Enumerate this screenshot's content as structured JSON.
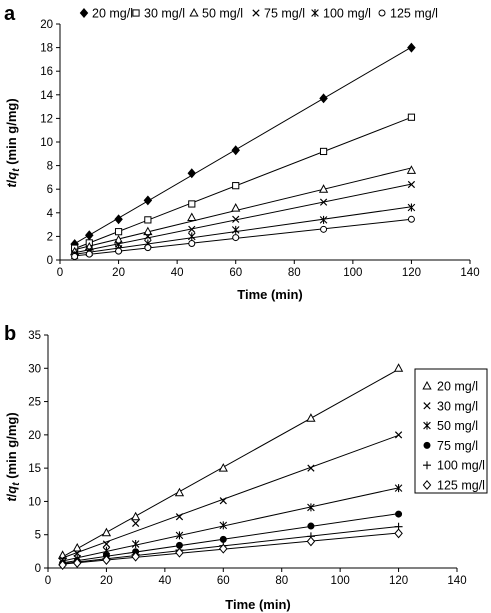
{
  "chart_data": [
    {
      "type": "scatter",
      "panel_label": "a",
      "title": "",
      "xlabel": "Time (min)",
      "ylabel_parts": [
        "t",
        "/",
        "q",
        "t",
        " (min g/mg)"
      ],
      "xlim": [
        0,
        140
      ],
      "ylim": [
        0,
        20
      ],
      "xticks": [
        "0",
        "20",
        "40",
        "60",
        "80",
        "100",
        "120",
        "140"
      ],
      "yticks": [
        "0",
        "2",
        "4",
        "6",
        "8",
        "10",
        "12",
        "14",
        "16",
        "18",
        "20"
      ],
      "grid": false,
      "legend_position": "top",
      "fit_lines": true,
      "x": [
        5,
        10,
        20,
        30,
        45,
        60,
        90,
        120
      ],
      "series": [
        {
          "name": "20 mg/l",
          "marker": "diamond-filled",
          "values": [
            1.35,
            2.1,
            3.45,
            5.05,
            7.35,
            9.3,
            13.7,
            18.0
          ]
        },
        {
          "name": "30 mg/l",
          "marker": "square-open",
          "values": [
            1.0,
            1.45,
            2.4,
            3.4,
            4.75,
            6.3,
            9.2,
            12.1
          ]
        },
        {
          "name": "50 mg/l",
          "marker": "triangle-open",
          "values": [
            0.7,
            1.1,
            1.7,
            2.4,
            3.6,
            4.4,
            6.0,
            7.6
          ]
        },
        {
          "name": "75 mg/l",
          "marker": "x",
          "values": [
            0.55,
            0.85,
            1.35,
            2.0,
            2.6,
            3.45,
            4.9,
            6.4
          ]
        },
        {
          "name": "100 mg/l",
          "marker": "asterisk",
          "values": [
            0.4,
            0.65,
            0.95,
            1.4,
            2.0,
            2.55,
            3.4,
            4.45
          ]
        },
        {
          "name": "125 mg/l",
          "marker": "circle-open",
          "values": [
            0.3,
            0.5,
            0.75,
            1.05,
            1.4,
            1.9,
            2.6,
            3.45
          ]
        }
      ]
    },
    {
      "type": "scatter",
      "panel_label": "b",
      "title": "",
      "xlabel": "Time (min)",
      "ylabel_parts": [
        "t",
        "/",
        "q",
        "t",
        " (min g/mg)"
      ],
      "xlim": [
        0,
        140
      ],
      "ylim": [
        0,
        35
      ],
      "xticks": [
        "0",
        "20",
        "40",
        "60",
        "80",
        "100",
        "120",
        "140"
      ],
      "yticks": [
        "0",
        "5",
        "10",
        "15",
        "20",
        "25",
        "30",
        "35"
      ],
      "grid": false,
      "legend_position": "right",
      "fit_lines": true,
      "x": [
        5,
        10,
        20,
        30,
        45,
        60,
        90,
        120
      ],
      "series": [
        {
          "name": "20 mg/l",
          "marker": "triangle-open",
          "values": [
            1.9,
            3.0,
            5.3,
            7.7,
            11.3,
            15.0,
            22.5,
            30.0
          ]
        },
        {
          "name": "30 mg/l",
          "marker": "x",
          "values": [
            1.3,
            2.2,
            3.6,
            6.7,
            7.7,
            10.1,
            15.0,
            20.0
          ]
        },
        {
          "name": "50 mg/l",
          "marker": "asterisk",
          "values": [
            0.9,
            1.4,
            2.6,
            3.6,
            4.9,
            6.4,
            9.1,
            12.0
          ]
        },
        {
          "name": "75 mg/l",
          "marker": "circle-filled",
          "values": [
            0.7,
            1.05,
            1.85,
            2.45,
            3.4,
            4.3,
            6.3,
            8.1
          ]
        },
        {
          "name": "100 mg/l",
          "marker": "plus",
          "values": [
            0.55,
            0.85,
            1.4,
            2.0,
            2.7,
            3.35,
            4.75,
            6.2
          ]
        },
        {
          "name": "125 mg/l",
          "marker": "diamond-open",
          "values": [
            0.45,
            0.75,
            1.2,
            1.7,
            2.3,
            2.9,
            4.0,
            5.2
          ]
        }
      ]
    }
  ]
}
